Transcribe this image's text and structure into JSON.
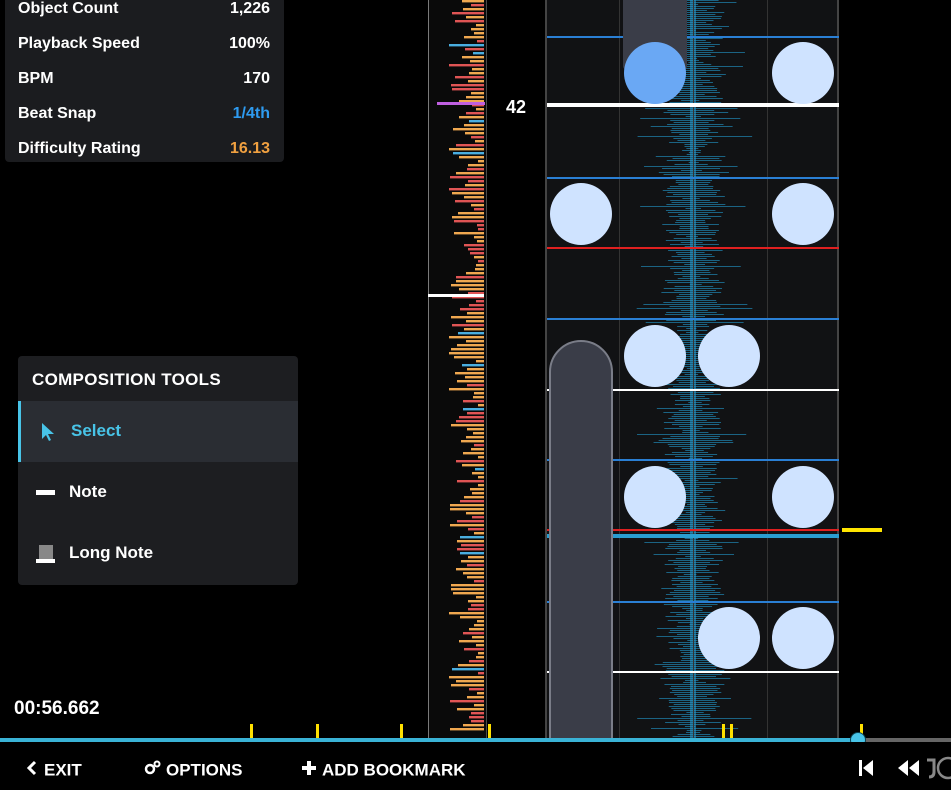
{
  "info_panel": {
    "rows": [
      {
        "label": "Object Count",
        "value": "1,226"
      },
      {
        "label": "Playback Speed",
        "value": "100%"
      },
      {
        "label": "BPM",
        "value": "170"
      },
      {
        "label": "Beat Snap",
        "value": "1/4th"
      },
      {
        "label": "Difficulty Rating",
        "value": "16.13"
      }
    ]
  },
  "composition_tools": {
    "title": "COMPOSITION TOOLS",
    "items": [
      {
        "label": "Select",
        "icon": "cursor-icon",
        "selected": true
      },
      {
        "label": "Note",
        "icon": "note-icon",
        "selected": false
      },
      {
        "label": "Long Note",
        "icon": "long-note-icon",
        "selected": false
      }
    ]
  },
  "measure_number": "42",
  "timestamp": "00:56.662",
  "bottom_bar": {
    "exit_label": "EXIT",
    "options_label": "OPTIONS",
    "add_bookmark_label": "ADD BOOKMARK"
  },
  "colors": {
    "accent": "#48c4e8",
    "beat_snap": "#2e9bf0",
    "difficulty": "#f0a040",
    "bookmark": "#ffe000",
    "note": "#cfe3ff",
    "active_note": "#6aa8f4",
    "measure_line": "#ffffff",
    "snap_line_blue": "#2a7fd4",
    "snap_line_red": "#e02020"
  }
}
